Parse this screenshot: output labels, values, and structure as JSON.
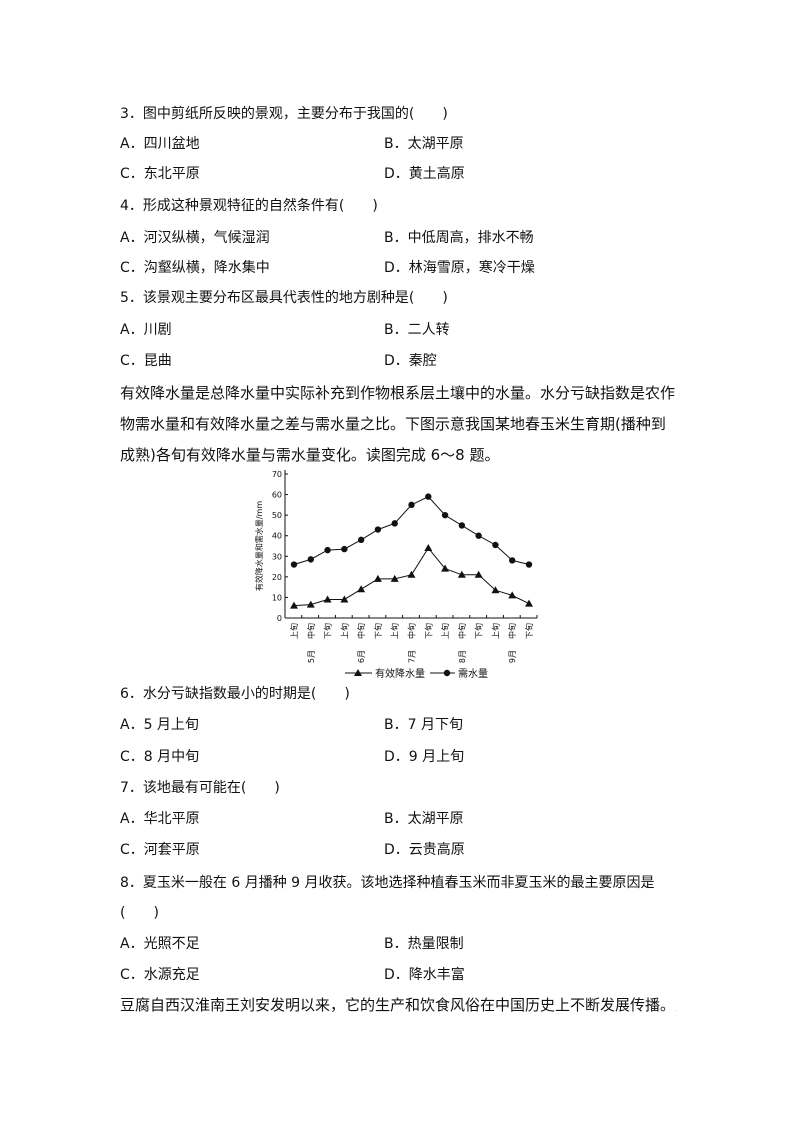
{
  "q3": {
    "stem": "3．图中剪纸所反映的景观，主要分布于我国的(　　)",
    "options": [
      "A．四川盆地",
      "B．太湖平原",
      "C．东北平原",
      "D．黄土高原"
    ]
  },
  "q4": {
    "stem": "4．形成这种景观特征的自然条件有(　　)",
    "options": [
      "A．河汉纵横，气候湿润",
      "B．中低周高，排水不畅",
      "C．沟壑纵横，降水集中",
      "D．林海雪原，寒冷干燥"
    ]
  },
  "q5": {
    "stem": "5．该景观主要分布区最具代表性的地方剧种是(　　)",
    "options": [
      "A．川剧",
      "B．二人转",
      "C．昆曲",
      "D．秦腔"
    ]
  },
  "intro": "有效降水量是总降水量中实际补充到作物根系层土壤中的水量。水分亏缺指数是农作物需水量和有效降水量之差与需水量之比。下图示意我国某地春玉米生育期(播种到成熟)各旬有效降水量与需水量变化。读图完成 6～8 题。",
  "chart_data": {
    "type": "line",
    "ylabel": "有效降水量和需水量/mm",
    "ylim": [
      0,
      70
    ],
    "yticks": [
      0,
      10,
      20,
      30,
      40,
      50,
      60,
      70
    ],
    "categories": [
      "上旬",
      "中旬",
      "下旬",
      "上旬",
      "中旬",
      "下旬",
      "上旬",
      "中旬",
      "下旬",
      "上旬",
      "中旬",
      "下旬",
      "上旬",
      "中旬",
      "下旬"
    ],
    "months": [
      "5月",
      "6月",
      "7月",
      "8月",
      "9月"
    ],
    "series": [
      {
        "name": "有效降水量",
        "marker": "triangle",
        "values": [
          6,
          6.5,
          9,
          9,
          14,
          19,
          19,
          21,
          34,
          24,
          21,
          21,
          13.5,
          11,
          7
        ]
      },
      {
        "name": "需水量",
        "marker": "circle",
        "values": [
          26,
          28.5,
          33,
          33.5,
          38,
          43,
          46,
          55,
          59,
          50,
          45,
          40,
          35.5,
          28,
          26
        ]
      }
    ],
    "legend": "bottom",
    "grid": false
  },
  "q6": {
    "stem": "6．水分亏缺指数最小的时期是(　　)",
    "options": [
      "A．5 月上旬",
      "B．7 月下旬",
      "C．8 月中旬",
      "D．9 月上旬"
    ]
  },
  "q7": {
    "stem": "7．该地最有可能在(　　)",
    "options": [
      "A．华北平原",
      "B．太湖平原",
      "C．河套平原",
      "D．云贵高原"
    ]
  },
  "q8": {
    "stem": "8．夏玉米一般在 6 月播种 9 月收获。该地选择种植春玉米而非夏玉米的最主要原因是",
    "stem2": "(　　)",
    "options": [
      "A．光照不足",
      "B．热量限制",
      "C．水源充足",
      "D．降水丰富"
    ]
  },
  "outro": "豆腐自西汉淮南王刘安发明以来，它的生产和饮食风俗在中国历史上不断发展传播。豆腐的"
}
